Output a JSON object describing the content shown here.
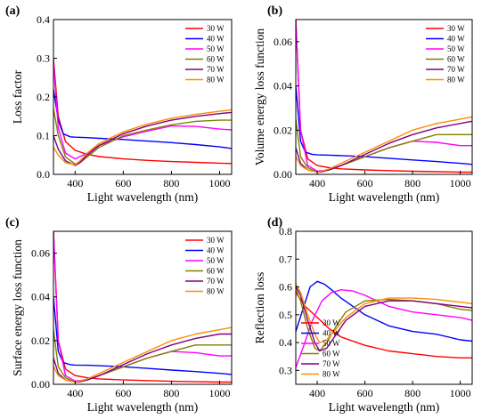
{
  "chart_data": [
    {
      "type": "line",
      "panel_label": "(a)",
      "xlabel": "Light wavelength (nm)",
      "ylabel": "Loss factor",
      "xlim": [
        310,
        1050
      ],
      "ylim": [
        0,
        0.4
      ],
      "xticks": [
        400,
        600,
        800,
        1000
      ],
      "yticks": [
        0.0,
        0.1,
        0.2,
        0.3,
        0.4
      ],
      "ytick_labels": [
        "0.0",
        "0.1",
        "0.2",
        "0.3",
        "0.4"
      ],
      "legend_position": "top-right",
      "series": [
        {
          "name": "30 W",
          "color": "#ff0000",
          "x": [
            310,
            330,
            360,
            400,
            450,
            500,
            600,
            700,
            800,
            900,
            1000,
            1050
          ],
          "y": [
            0.3,
            0.15,
            0.085,
            0.062,
            0.052,
            0.046,
            0.04,
            0.036,
            0.033,
            0.031,
            0.029,
            0.028
          ]
        },
        {
          "name": "40 W",
          "color": "#0000ff",
          "x": [
            310,
            330,
            350,
            380,
            400,
            450,
            500,
            600,
            700,
            800,
            900,
            1000,
            1050
          ],
          "y": [
            0.22,
            0.14,
            0.105,
            0.097,
            0.096,
            0.095,
            0.093,
            0.09,
            0.086,
            0.082,
            0.077,
            0.071,
            0.067
          ]
        },
        {
          "name": "50 W",
          "color": "#ff00ff",
          "x": [
            310,
            330,
            360,
            400,
            450,
            500,
            600,
            700,
            800,
            900,
            1000,
            1050
          ],
          "y": [
            0.29,
            0.12,
            0.055,
            0.04,
            0.055,
            0.075,
            0.097,
            0.112,
            0.125,
            0.124,
            0.117,
            0.115
          ]
        },
        {
          "name": "60 W",
          "color": "#808000",
          "x": [
            310,
            330,
            360,
            400,
            420,
            450,
            500,
            600,
            700,
            800,
            900,
            1000,
            1050
          ],
          "y": [
            0.17,
            0.1,
            0.045,
            0.027,
            0.03,
            0.045,
            0.07,
            0.1,
            0.115,
            0.128,
            0.137,
            0.14,
            0.14
          ]
        },
        {
          "name": "70 W",
          "color": "#800080",
          "x": [
            310,
            330,
            360,
            400,
            420,
            450,
            500,
            600,
            700,
            800,
            900,
            1000,
            1050
          ],
          "y": [
            0.1,
            0.065,
            0.035,
            0.023,
            0.03,
            0.05,
            0.075,
            0.105,
            0.125,
            0.14,
            0.15,
            0.157,
            0.16
          ]
        },
        {
          "name": "80 W",
          "color": "#ff8c00",
          "x": [
            310,
            330,
            360,
            400,
            420,
            450,
            500,
            600,
            700,
            800,
            900,
            1000,
            1050
          ],
          "y": [
            0.07,
            0.05,
            0.03,
            0.025,
            0.035,
            0.055,
            0.08,
            0.11,
            0.13,
            0.145,
            0.155,
            0.163,
            0.167
          ]
        }
      ]
    },
    {
      "type": "line",
      "panel_label": "(b)",
      "xlabel": "Light wavelength (nm)",
      "ylabel": "Volume energy loss function",
      "xlim": [
        310,
        1050
      ],
      "ylim": [
        0,
        0.07
      ],
      "xticks": [
        400,
        600,
        800,
        1000
      ],
      "yticks": [
        0.0,
        0.02,
        0.04,
        0.06
      ],
      "ytick_labels": [
        "0.00",
        "0.02",
        "0.04",
        "0.06"
      ],
      "legend_position": "top-right",
      "series": [
        {
          "name": "30 W",
          "color": "#ff0000",
          "x": [
            310,
            330,
            360,
            400,
            450,
            500,
            600,
            700,
            800,
            900,
            1000,
            1050
          ],
          "y": [
            0.07,
            0.02,
            0.007,
            0.004,
            0.003,
            0.0025,
            0.002,
            0.0017,
            0.0014,
            0.0012,
            0.001,
            0.001
          ]
        },
        {
          "name": "40 W",
          "color": "#0000ff",
          "x": [
            310,
            330,
            350,
            380,
            400,
            450,
            500,
            600,
            700,
            800,
            900,
            1000,
            1050
          ],
          "y": [
            0.04,
            0.015,
            0.01,
            0.009,
            0.0088,
            0.0087,
            0.0085,
            0.008,
            0.0073,
            0.0065,
            0.0058,
            0.005,
            0.0045
          ]
        },
        {
          "name": "50 W",
          "color": "#ff00ff",
          "x": [
            310,
            330,
            360,
            400,
            450,
            500,
            600,
            700,
            800,
            900,
            1000,
            1050
          ],
          "y": [
            0.07,
            0.02,
            0.004,
            0.0015,
            0.002,
            0.004,
            0.008,
            0.012,
            0.015,
            0.0145,
            0.013,
            0.013
          ]
        },
        {
          "name": "60 W",
          "color": "#808000",
          "x": [
            310,
            330,
            360,
            400,
            420,
            450,
            500,
            600,
            700,
            800,
            900,
            1000,
            1050
          ],
          "y": [
            0.025,
            0.008,
            0.003,
            0.001,
            0.0012,
            0.002,
            0.004,
            0.008,
            0.012,
            0.015,
            0.018,
            0.018,
            0.018
          ]
        },
        {
          "name": "70 W",
          "color": "#800080",
          "x": [
            310,
            330,
            360,
            400,
            420,
            450,
            500,
            600,
            700,
            800,
            900,
            1000,
            1050
          ],
          "y": [
            0.012,
            0.005,
            0.002,
            0.001,
            0.0012,
            0.002,
            0.004,
            0.009,
            0.014,
            0.018,
            0.021,
            0.023,
            0.024
          ]
        },
        {
          "name": "80 W",
          "color": "#ff8c00",
          "x": [
            310,
            330,
            360,
            400,
            420,
            450,
            500,
            600,
            700,
            800,
            900,
            1000,
            1050
          ],
          "y": [
            0.008,
            0.004,
            0.002,
            0.001,
            0.0015,
            0.0025,
            0.005,
            0.01,
            0.015,
            0.02,
            0.023,
            0.025,
            0.026
          ]
        }
      ]
    },
    {
      "type": "line",
      "panel_label": "(c)",
      "xlabel": "Light wavelength (nm)",
      "ylabel": "Surface energy loss function",
      "xlim": [
        310,
        1050
      ],
      "ylim": [
        0,
        0.07
      ],
      "xticks": [
        400,
        600,
        800,
        1000
      ],
      "yticks": [
        0.0,
        0.02,
        0.04,
        0.06
      ],
      "ytick_labels": [
        "0.00",
        "0.02",
        "0.04",
        "0.06"
      ],
      "legend_position": "top-right",
      "series": [
        {
          "name": "30 W",
          "color": "#ff0000",
          "x": [
            310,
            330,
            360,
            400,
            450,
            500,
            600,
            700,
            800,
            900,
            1000,
            1050
          ],
          "y": [
            0.07,
            0.02,
            0.007,
            0.004,
            0.003,
            0.0025,
            0.002,
            0.0017,
            0.0014,
            0.0012,
            0.001,
            0.001
          ]
        },
        {
          "name": "40 W",
          "color": "#0000ff",
          "x": [
            310,
            330,
            350,
            380,
            400,
            450,
            500,
            600,
            700,
            800,
            900,
            1000,
            1050
          ],
          "y": [
            0.04,
            0.015,
            0.01,
            0.009,
            0.0088,
            0.0087,
            0.0085,
            0.008,
            0.0073,
            0.0065,
            0.0058,
            0.005,
            0.0045
          ]
        },
        {
          "name": "50 W",
          "color": "#ff00ff",
          "x": [
            310,
            330,
            360,
            400,
            450,
            500,
            600,
            700,
            800,
            900,
            1000,
            1050
          ],
          "y": [
            0.07,
            0.02,
            0.004,
            0.0015,
            0.002,
            0.004,
            0.008,
            0.012,
            0.015,
            0.0145,
            0.013,
            0.013
          ]
        },
        {
          "name": "60 W",
          "color": "#808000",
          "x": [
            310,
            330,
            360,
            400,
            420,
            450,
            500,
            600,
            700,
            800,
            900,
            1000,
            1050
          ],
          "y": [
            0.025,
            0.008,
            0.003,
            0.001,
            0.0012,
            0.002,
            0.004,
            0.008,
            0.012,
            0.015,
            0.018,
            0.018,
            0.018
          ]
        },
        {
          "name": "70 W",
          "color": "#800080",
          "x": [
            310,
            330,
            360,
            400,
            420,
            450,
            500,
            600,
            700,
            800,
            900,
            1000,
            1050
          ],
          "y": [
            0.012,
            0.005,
            0.002,
            0.001,
            0.0012,
            0.002,
            0.004,
            0.009,
            0.014,
            0.018,
            0.021,
            0.023,
            0.023
          ]
        },
        {
          "name": "80 W",
          "color": "#ff8c00",
          "x": [
            310,
            330,
            360,
            400,
            420,
            450,
            500,
            600,
            700,
            800,
            900,
            1000,
            1050
          ],
          "y": [
            0.008,
            0.004,
            0.002,
            0.001,
            0.0015,
            0.0025,
            0.005,
            0.01,
            0.015,
            0.02,
            0.023,
            0.025,
            0.026
          ]
        }
      ]
    },
    {
      "type": "line",
      "panel_label": "(d)",
      "xlabel": "Light wavelength (nm)",
      "ylabel": "Reflection loss",
      "xlim": [
        310,
        1050
      ],
      "ylim": [
        0.25,
        0.8
      ],
      "xticks": [
        400,
        600,
        800,
        1000
      ],
      "yticks": [
        0.3,
        0.4,
        0.5,
        0.6,
        0.7,
        0.8
      ],
      "ytick_labels": [
        "0.3",
        "0.4",
        "0.5",
        "0.6",
        "0.7",
        "0.8"
      ],
      "legend_position": "bottom-left",
      "series": [
        {
          "name": "30 W",
          "color": "#ff0000",
          "x": [
            310,
            350,
            400,
            450,
            500,
            600,
            700,
            800,
            900,
            1000,
            1050
          ],
          "y": [
            0.58,
            0.53,
            0.49,
            0.45,
            0.42,
            0.39,
            0.37,
            0.36,
            0.35,
            0.345,
            0.345
          ]
        },
        {
          "name": "40 W",
          "color": "#0000ff",
          "x": [
            310,
            340,
            370,
            400,
            430,
            460,
            500,
            600,
            700,
            800,
            900,
            1000,
            1050
          ],
          "y": [
            0.44,
            0.52,
            0.6,
            0.62,
            0.61,
            0.59,
            0.56,
            0.5,
            0.46,
            0.44,
            0.43,
            0.41,
            0.405
          ]
        },
        {
          "name": "50 W",
          "color": "#ff00ff",
          "x": [
            310,
            340,
            380,
            420,
            460,
            500,
            550,
            600,
            700,
            800,
            900,
            1000,
            1050
          ],
          "y": [
            0.31,
            0.38,
            0.48,
            0.55,
            0.58,
            0.59,
            0.585,
            0.57,
            0.53,
            0.51,
            0.5,
            0.49,
            0.48
          ]
        },
        {
          "name": "60 W",
          "color": "#808000",
          "x": [
            310,
            330,
            360,
            390,
            410,
            440,
            480,
            520,
            600,
            700,
            800,
            900,
            1000,
            1050
          ],
          "y": [
            0.59,
            0.55,
            0.45,
            0.38,
            0.37,
            0.4,
            0.46,
            0.51,
            0.55,
            0.555,
            0.55,
            0.54,
            0.52,
            0.515
          ]
        },
        {
          "name": "70 W",
          "color": "#800080",
          "x": [
            310,
            330,
            360,
            390,
            410,
            440,
            480,
            520,
            600,
            700,
            800,
            900,
            1000,
            1050
          ],
          "y": [
            0.6,
            0.57,
            0.48,
            0.4,
            0.37,
            0.38,
            0.43,
            0.48,
            0.53,
            0.55,
            0.55,
            0.54,
            0.53,
            0.525
          ]
        },
        {
          "name": "80 W",
          "color": "#ff8c00",
          "x": [
            310,
            330,
            360,
            390,
            410,
            440,
            480,
            520,
            600,
            700,
            800,
            900,
            1000,
            1050
          ],
          "y": [
            0.61,
            0.58,
            0.5,
            0.43,
            0.4,
            0.41,
            0.45,
            0.49,
            0.54,
            0.56,
            0.56,
            0.555,
            0.545,
            0.54
          ]
        }
      ]
    }
  ]
}
